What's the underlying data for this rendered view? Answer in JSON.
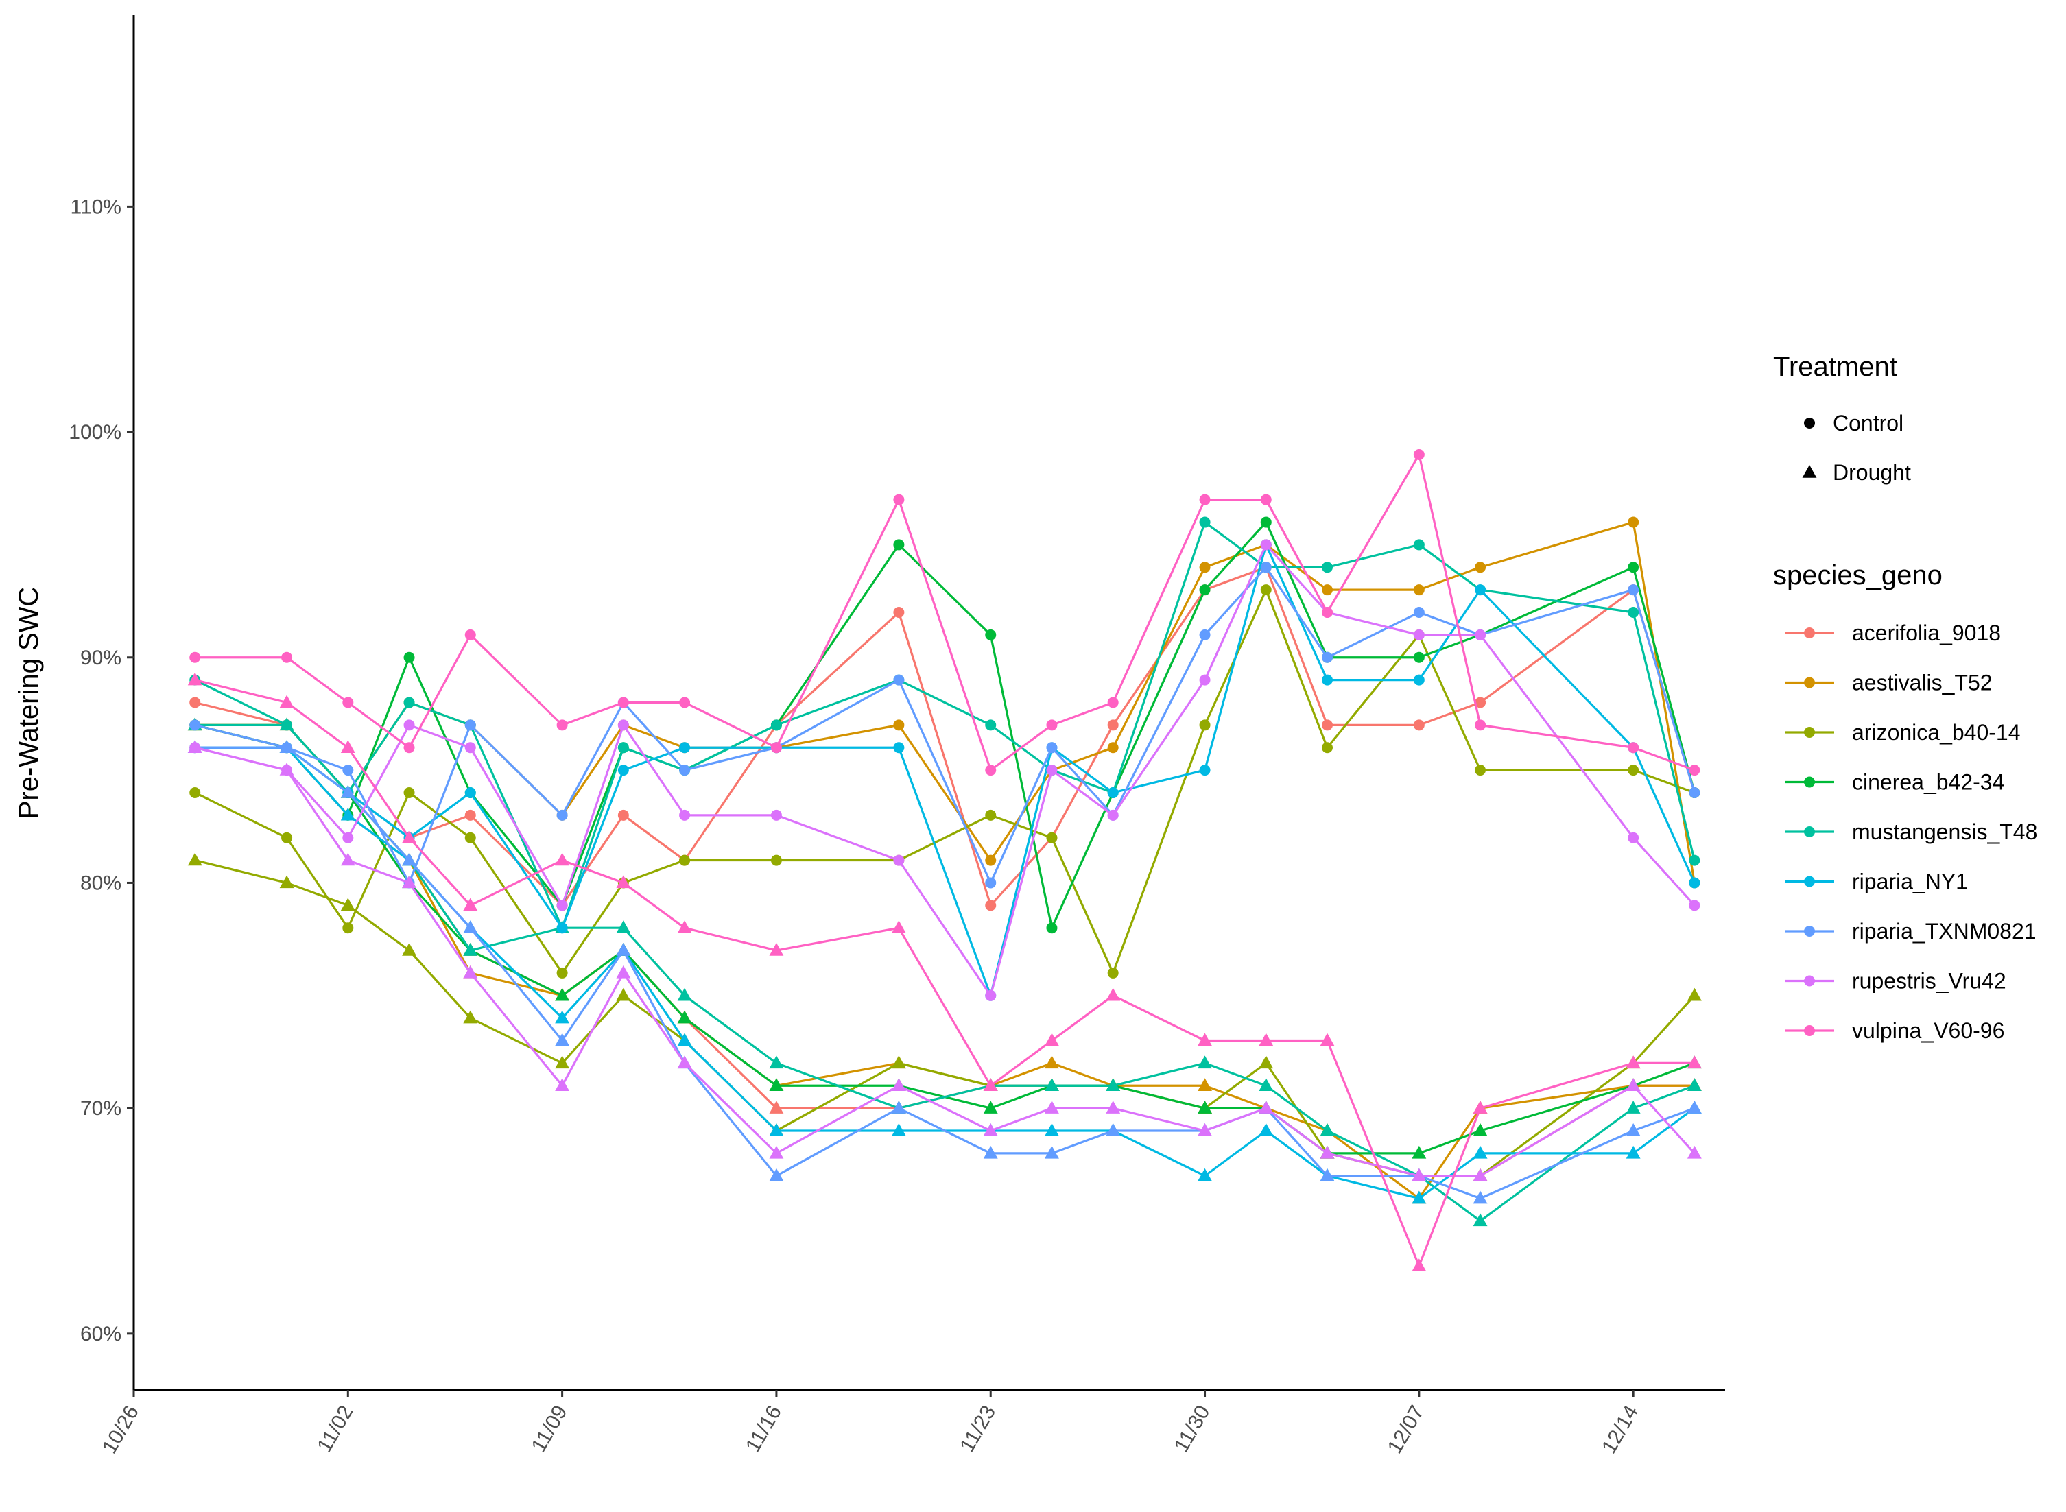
{
  "chart_data": {
    "type": "line",
    "title": "",
    "xlabel": "",
    "ylabel": "Pre-Watering SWC",
    "x_ticks": [
      "10/26",
      "11/02",
      "11/09",
      "11/16",
      "11/23",
      "11/30",
      "12/07",
      "12/14"
    ],
    "y_ticks": [
      "60%",
      "70%",
      "80%",
      "90%",
      "100%",
      "110%"
    ],
    "xlim": [
      "2023-10-26",
      "2023-12-17"
    ],
    "ylim": [
      0.575,
      1.185
    ],
    "x_dates": [
      "2023-10-28",
      "2023-10-31",
      "2023-11-02",
      "2023-11-04",
      "2023-11-06",
      "2023-11-09",
      "2023-11-11",
      "2023-11-13",
      "2023-11-16",
      "2023-11-20",
      "2023-11-23",
      "2023-11-25",
      "2023-11-27",
      "2023-11-30",
      "2023-12-02",
      "2023-12-04",
      "2023-12-07",
      "2023-12-09",
      "2023-12-14",
      "2023-12-16"
    ],
    "grid": false,
    "legend_position": "right",
    "legends": {
      "shape": {
        "title": "Treatment",
        "entries": [
          {
            "label": "Control",
            "shape": "circle"
          },
          {
            "label": "Drought",
            "shape": "triangle"
          }
        ]
      },
      "color": {
        "title": "species_geno",
        "entries": [
          {
            "label": "acerifolia_9018",
            "color": "#F8766D"
          },
          {
            "label": "aestivalis_T52",
            "color": "#D39200"
          },
          {
            "label": "arizonica_b40-14",
            "color": "#93AA00"
          },
          {
            "label": "cinerea_b42-34",
            "color": "#00BA38"
          },
          {
            "label": "mustangensis_T48",
            "color": "#00C19F"
          },
          {
            "label": "riparia_NY1",
            "color": "#00B9E3"
          },
          {
            "label": "riparia_TXNM0821",
            "color": "#619CFF"
          },
          {
            "label": "rupestris_Vru42",
            "color": "#DB72FB"
          },
          {
            "label": "vulpina_V60-96",
            "color": "#FF61C3"
          }
        ]
      }
    },
    "series": [
      {
        "species": "acerifolia_9018",
        "treatment": "Control",
        "color": "#F8766D",
        "values": [
          0.88,
          0.87,
          0.84,
          0.82,
          0.83,
          0.79,
          0.83,
          0.81,
          0.87,
          0.92,
          0.79,
          0.82,
          0.87,
          0.93,
          0.94,
          0.87,
          0.87,
          0.88,
          0.93,
          0.84
        ]
      },
      {
        "species": "acerifolia_9018",
        "treatment": "Drought",
        "color": "#F8766D",
        "values": [
          0.87,
          0.86,
          0.83,
          0.81,
          0.77,
          0.75,
          0.77,
          0.74,
          0.7,
          0.7,
          0.71,
          0.71,
          0.71,
          0.7,
          0.7,
          0.68,
          0.67,
          0.67,
          0.71,
          0.71
        ]
      },
      {
        "species": "aestivalis_T52",
        "treatment": "Control",
        "color": "#D39200",
        "values": [
          0.87,
          0.87,
          0.84,
          0.88,
          0.87,
          0.83,
          0.87,
          0.86,
          0.86,
          0.87,
          0.81,
          0.85,
          0.86,
          0.94,
          0.95,
          0.93,
          0.93,
          0.94,
          0.96,
          0.8
        ]
      },
      {
        "species": "aestivalis_T52",
        "treatment": "Drought",
        "color": "#D39200",
        "values": [
          0.87,
          0.87,
          0.84,
          0.81,
          0.76,
          0.75,
          0.77,
          0.74,
          0.71,
          0.72,
          0.71,
          0.72,
          0.71,
          0.71,
          0.7,
          0.69,
          0.66,
          0.7,
          0.71,
          0.71
        ]
      },
      {
        "species": "arizonica_b40-14",
        "treatment": "Control",
        "color": "#93AA00",
        "values": [
          0.84,
          0.82,
          0.78,
          0.84,
          0.82,
          0.76,
          0.8,
          0.81,
          0.81,
          0.81,
          0.83,
          0.82,
          0.76,
          0.87,
          0.93,
          0.86,
          0.91,
          0.85,
          0.85,
          0.84
        ]
      },
      {
        "species": "arizonica_b40-14",
        "treatment": "Drought",
        "color": "#93AA00",
        "values": [
          0.81,
          0.8,
          0.79,
          0.77,
          0.74,
          0.72,
          0.75,
          0.73,
          0.69,
          0.72,
          0.71,
          0.71,
          0.71,
          0.7,
          0.72,
          0.68,
          0.67,
          0.67,
          0.72,
          0.75
        ]
      },
      {
        "species": "cinerea_b42-34",
        "treatment": "Control",
        "color": "#00BA38",
        "values": [
          0.87,
          0.86,
          0.83,
          0.9,
          0.84,
          0.79,
          0.86,
          0.85,
          0.87,
          0.95,
          0.91,
          0.78,
          0.84,
          0.93,
          0.96,
          0.9,
          0.9,
          0.91,
          0.94,
          0.84
        ]
      },
      {
        "species": "cinerea_b42-34",
        "treatment": "Drought",
        "color": "#00BA38",
        "values": [
          0.87,
          0.86,
          0.84,
          0.8,
          0.77,
          0.75,
          0.77,
          0.74,
          0.71,
          0.71,
          0.7,
          0.71,
          0.71,
          0.7,
          0.7,
          0.68,
          0.68,
          0.69,
          0.71,
          0.72
        ]
      },
      {
        "species": "mustangensis_T48",
        "treatment": "Control",
        "color": "#00C19F",
        "values": [
          0.89,
          0.87,
          0.84,
          0.88,
          0.87,
          0.78,
          0.86,
          0.85,
          0.87,
          0.89,
          0.87,
          0.85,
          0.84,
          0.96,
          0.94,
          0.94,
          0.95,
          0.93,
          0.92,
          0.81
        ]
      },
      {
        "species": "mustangensis_T48",
        "treatment": "Drought",
        "color": "#00C19F",
        "values": [
          0.87,
          0.87,
          0.84,
          0.81,
          0.77,
          0.78,
          0.78,
          0.75,
          0.72,
          0.7,
          0.71,
          0.71,
          0.71,
          0.72,
          0.71,
          0.69,
          0.67,
          0.65,
          0.7,
          0.71
        ]
      },
      {
        "species": "riparia_NY1",
        "treatment": "Control",
        "color": "#00B9E3",
        "values": [
          0.86,
          0.86,
          0.84,
          0.82,
          0.84,
          0.78,
          0.85,
          0.86,
          0.86,
          0.86,
          0.75,
          0.86,
          0.84,
          0.85,
          0.95,
          0.89,
          0.89,
          0.93,
          0.86,
          0.8
        ]
      },
      {
        "species": "riparia_NY1",
        "treatment": "Drought",
        "color": "#00B9E3",
        "values": [
          0.86,
          0.86,
          0.83,
          0.81,
          0.78,
          0.74,
          0.77,
          0.73,
          0.69,
          0.69,
          0.69,
          0.69,
          0.69,
          0.67,
          0.69,
          0.67,
          0.66,
          0.68,
          0.68,
          0.7
        ]
      },
      {
        "species": "riparia_TXNM0821",
        "treatment": "Control",
        "color": "#619CFF",
        "values": [
          0.87,
          0.86,
          0.85,
          0.8,
          0.87,
          0.83,
          0.88,
          0.85,
          0.86,
          0.89,
          0.8,
          0.86,
          0.83,
          0.91,
          0.94,
          0.9,
          0.92,
          0.91,
          0.93,
          0.84
        ]
      },
      {
        "species": "riparia_TXNM0821",
        "treatment": "Drought",
        "color": "#619CFF",
        "values": [
          0.86,
          0.86,
          0.84,
          0.81,
          0.78,
          0.73,
          0.77,
          0.72,
          0.67,
          0.7,
          0.68,
          0.68,
          0.69,
          0.69,
          0.7,
          0.67,
          0.67,
          0.66,
          0.69,
          0.7
        ]
      },
      {
        "species": "rupestris_Vru42",
        "treatment": "Control",
        "color": "#DB72FB",
        "values": [
          0.86,
          0.85,
          0.82,
          0.87,
          0.86,
          0.79,
          0.87,
          0.83,
          0.83,
          0.81,
          0.75,
          0.85,
          0.83,
          0.89,
          0.95,
          0.92,
          0.91,
          0.91,
          0.82,
          0.79
        ]
      },
      {
        "species": "rupestris_Vru42",
        "treatment": "Drought",
        "color": "#DB72FB",
        "values": [
          0.86,
          0.85,
          0.81,
          0.8,
          0.76,
          0.71,
          0.76,
          0.72,
          0.68,
          0.71,
          0.69,
          0.7,
          0.7,
          0.69,
          0.7,
          0.68,
          0.67,
          0.67,
          0.71,
          0.68
        ]
      },
      {
        "species": "vulpina_V60-96",
        "treatment": "Control",
        "color": "#FF61C3",
        "values": [
          0.9,
          0.9,
          0.88,
          0.86,
          0.91,
          0.87,
          0.88,
          0.88,
          0.86,
          0.97,
          0.85,
          0.87,
          0.88,
          0.97,
          0.97,
          0.92,
          0.99,
          0.87,
          0.86,
          0.85
        ]
      },
      {
        "species": "vulpina_V60-96",
        "treatment": "Drought",
        "color": "#FF61C3",
        "values": [
          0.89,
          0.88,
          0.86,
          0.82,
          0.79,
          0.81,
          0.8,
          0.78,
          0.77,
          0.78,
          0.71,
          0.73,
          0.75,
          0.73,
          0.73,
          0.73,
          0.63,
          0.7,
          0.72,
          0.72
        ]
      }
    ]
  }
}
